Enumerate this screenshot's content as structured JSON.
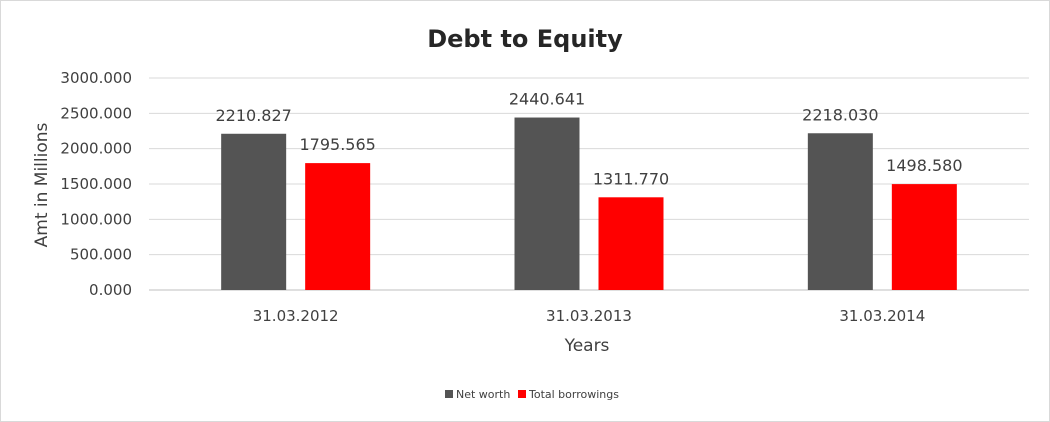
{
  "chart_data": {
    "type": "bar",
    "title": "Debt to Equity",
    "xlabel": "Years",
    "ylabel": "Amt in Millions",
    "categories": [
      "31.03.2012",
      "31.03.2013",
      "31.03.2014"
    ],
    "series": [
      {
        "name": "Net worth",
        "color": "#545454",
        "values": [
          2210.827,
          2440.641,
          2218.03
        ],
        "labels": [
          "2210.827",
          "2440.641",
          "2218.030"
        ]
      },
      {
        "name": "Total borrowings",
        "color": "#ff0000",
        "values": [
          1795.565,
          1311.77,
          1498.58
        ],
        "labels": [
          "1795.565",
          "1311.770",
          "1498.580"
        ]
      }
    ],
    "ylim": [
      0,
      3000
    ],
    "yticks": [
      0,
      500,
      1000,
      1500,
      2000,
      2500,
      3000
    ],
    "ytick_labels": [
      "0.000",
      "500.000",
      "1000.000",
      "1500.000",
      "2000.000",
      "2500.000",
      "3000.000"
    ],
    "grid": true,
    "legend": "bottom"
  }
}
